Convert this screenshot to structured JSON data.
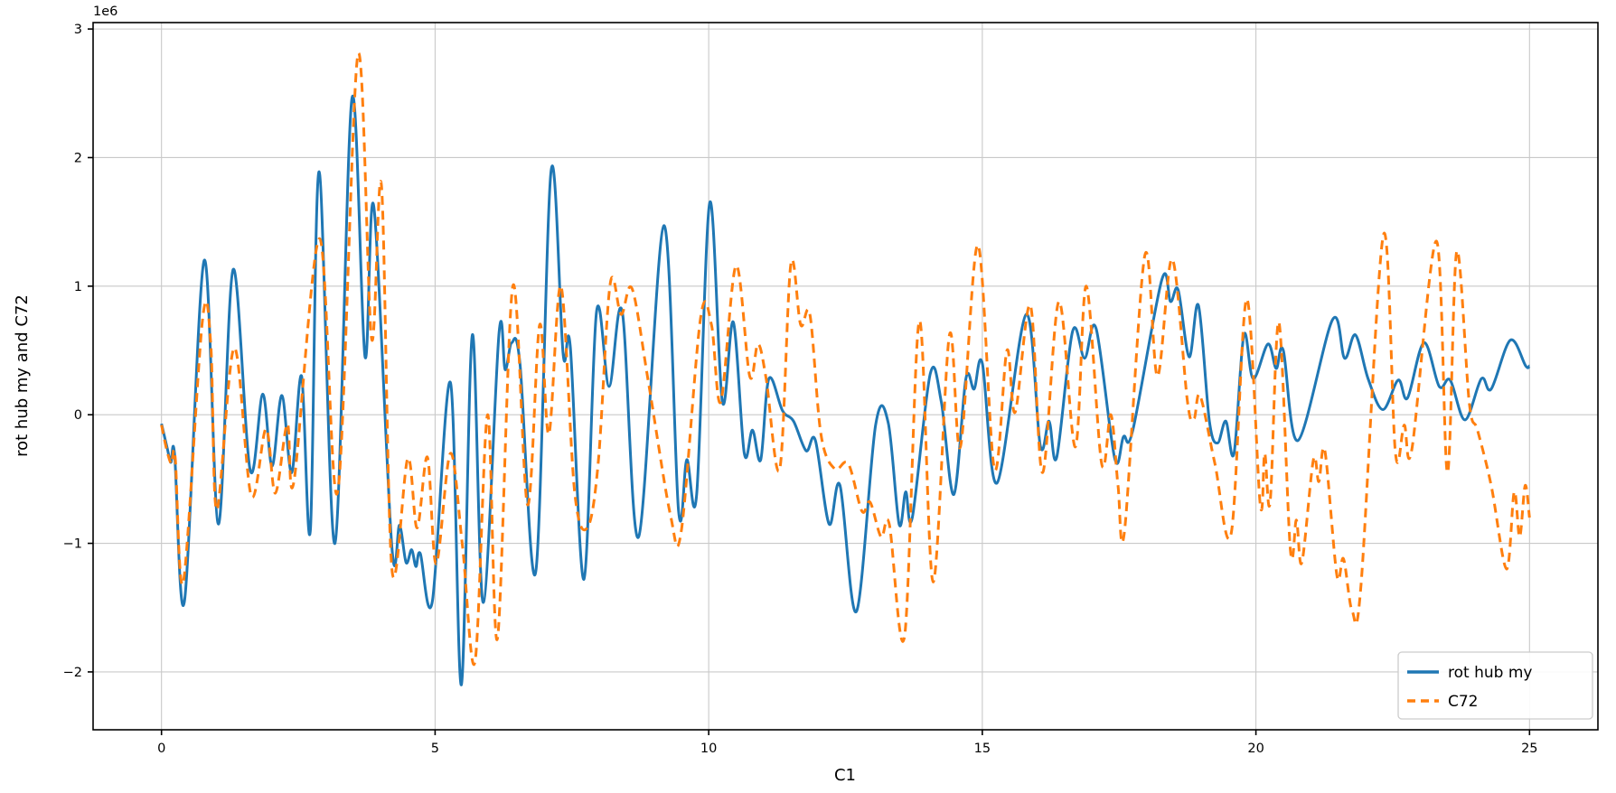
{
  "chart_data": {
    "type": "line",
    "title": "",
    "xlabel": "C1",
    "ylabel": "rot hub my and C72",
    "offset_text": "1e6",
    "xlim": [
      -1.25,
      26.25
    ],
    "ylim": [
      -2450000,
      3050000
    ],
    "xticks": [
      0,
      5,
      10,
      15,
      20,
      25
    ],
    "xtick_labels": [
      "0",
      "5",
      "10",
      "15",
      "20",
      "25"
    ],
    "yticks": [
      -2000000,
      -1000000,
      0,
      1000000,
      2000000,
      3000000
    ],
    "ytick_labels": [
      "−2",
      "−1",
      "0",
      "1",
      "2",
      "3"
    ],
    "grid": true,
    "grid_color": "#c9c9c9",
    "axis_color": "#000000",
    "legend_position": "lower right",
    "series": [
      {
        "name": "rot hub my",
        "color": "#1f77b4",
        "style": "solid",
        "points": [
          [
            0.0,
            -70000
          ],
          [
            0.1,
            -250000
          ],
          [
            0.17,
            -370000
          ],
          [
            0.24,
            -310000
          ],
          [
            0.42,
            -1450000
          ],
          [
            0.78,
            1200000
          ],
          [
            1.04,
            -850000
          ],
          [
            1.31,
            1130000
          ],
          [
            1.62,
            -430000
          ],
          [
            1.85,
            160000
          ],
          [
            2.02,
            -400000
          ],
          [
            2.2,
            150000
          ],
          [
            2.38,
            -450000
          ],
          [
            2.56,
            300000
          ],
          [
            2.72,
            -900000
          ],
          [
            2.88,
            1890000
          ],
          [
            3.17,
            -1000000
          ],
          [
            3.48,
            2460000
          ],
          [
            3.72,
            450000
          ],
          [
            3.88,
            1620000
          ],
          [
            4.21,
            -1030000
          ],
          [
            4.35,
            -860000
          ],
          [
            4.47,
            -1150000
          ],
          [
            4.57,
            -1050000
          ],
          [
            4.65,
            -1180000
          ],
          [
            4.73,
            -1080000
          ],
          [
            4.95,
            -1450000
          ],
          [
            5.28,
            250000
          ],
          [
            5.48,
            -2100000
          ],
          [
            5.68,
            620000
          ],
          [
            5.88,
            -1460000
          ],
          [
            6.17,
            640000
          ],
          [
            6.28,
            350000
          ],
          [
            6.4,
            560000
          ],
          [
            6.55,
            400000
          ],
          [
            6.84,
            -1220000
          ],
          [
            7.12,
            1900000
          ],
          [
            7.34,
            470000
          ],
          [
            7.47,
            530000
          ],
          [
            7.72,
            -1280000
          ],
          [
            7.95,
            800000
          ],
          [
            8.18,
            220000
          ],
          [
            8.42,
            800000
          ],
          [
            8.72,
            -950000
          ],
          [
            9.18,
            1470000
          ],
          [
            9.45,
            -750000
          ],
          [
            9.6,
            -350000
          ],
          [
            9.78,
            -620000
          ],
          [
            10.02,
            1650000
          ],
          [
            10.25,
            100000
          ],
          [
            10.45,
            720000
          ],
          [
            10.65,
            -300000
          ],
          [
            10.8,
            -120000
          ],
          [
            10.95,
            -350000
          ],
          [
            11.1,
            280000
          ],
          [
            11.35,
            30000
          ],
          [
            11.55,
            -50000
          ],
          [
            11.78,
            -280000
          ],
          [
            11.95,
            -200000
          ],
          [
            12.2,
            -850000
          ],
          [
            12.4,
            -550000
          ],
          [
            12.7,
            -1530000
          ],
          [
            13.05,
            -80000
          ],
          [
            13.28,
            -60000
          ],
          [
            13.48,
            -850000
          ],
          [
            13.6,
            -600000
          ],
          [
            13.72,
            -800000
          ],
          [
            14.05,
            320000
          ],
          [
            14.25,
            100000
          ],
          [
            14.48,
            -620000
          ],
          [
            14.7,
            280000
          ],
          [
            14.85,
            200000
          ],
          [
            15.0,
            400000
          ],
          [
            15.27,
            -530000
          ],
          [
            15.8,
            780000
          ],
          [
            16.06,
            -240000
          ],
          [
            16.22,
            -50000
          ],
          [
            16.36,
            -330000
          ],
          [
            16.65,
            650000
          ],
          [
            16.87,
            440000
          ],
          [
            17.08,
            670000
          ],
          [
            17.42,
            -340000
          ],
          [
            17.58,
            -170000
          ],
          [
            17.75,
            -120000
          ],
          [
            18.28,
            1050000
          ],
          [
            18.44,
            880000
          ],
          [
            18.58,
            970000
          ],
          [
            18.78,
            450000
          ],
          [
            18.95,
            850000
          ],
          [
            19.15,
            -50000
          ],
          [
            19.3,
            -220000
          ],
          [
            19.45,
            -50000
          ],
          [
            19.6,
            -300000
          ],
          [
            19.78,
            620000
          ],
          [
            19.95,
            280000
          ],
          [
            20.22,
            550000
          ],
          [
            20.37,
            360000
          ],
          [
            20.5,
            500000
          ],
          [
            20.77,
            -200000
          ],
          [
            21.4,
            740000
          ],
          [
            21.62,
            440000
          ],
          [
            21.82,
            620000
          ],
          [
            22.05,
            280000
          ],
          [
            22.32,
            40000
          ],
          [
            22.6,
            270000
          ],
          [
            22.77,
            130000
          ],
          [
            23.07,
            560000
          ],
          [
            23.35,
            220000
          ],
          [
            23.55,
            270000
          ],
          [
            23.82,
            -40000
          ],
          [
            24.12,
            280000
          ],
          [
            24.3,
            200000
          ],
          [
            24.65,
            580000
          ],
          [
            24.93,
            380000
          ],
          [
            25.0,
            380000
          ]
        ]
      },
      {
        "name": "C72",
        "color": "#ff7f0e",
        "style": "dashed",
        "points": [
          [
            0.0,
            -80000
          ],
          [
            0.1,
            -280000
          ],
          [
            0.18,
            -380000
          ],
          [
            0.25,
            -330000
          ],
          [
            0.4,
            -1300000
          ],
          [
            0.75,
            740000
          ],
          [
            0.9,
            550000
          ],
          [
            1.01,
            -740000
          ],
          [
            1.33,
            520000
          ],
          [
            1.64,
            -630000
          ],
          [
            1.91,
            -110000
          ],
          [
            2.08,
            -610000
          ],
          [
            2.3,
            -70000
          ],
          [
            2.42,
            -520000
          ],
          [
            2.89,
            1370000
          ],
          [
            3.22,
            -600000
          ],
          [
            3.59,
            2800000
          ],
          [
            3.84,
            590000
          ],
          [
            4.02,
            1780000
          ],
          [
            4.21,
            -1200000
          ],
          [
            4.5,
            -340000
          ],
          [
            4.67,
            -880000
          ],
          [
            4.86,
            -330000
          ],
          [
            5.02,
            -1160000
          ],
          [
            5.28,
            -300000
          ],
          [
            5.5,
            -1020000
          ],
          [
            5.73,
            -1920000
          ],
          [
            5.96,
            0
          ],
          [
            6.14,
            -1740000
          ],
          [
            6.42,
            1000000
          ],
          [
            6.69,
            -700000
          ],
          [
            6.91,
            700000
          ],
          [
            7.08,
            -150000
          ],
          [
            7.3,
            1000000
          ],
          [
            7.55,
            -600000
          ],
          [
            7.78,
            -880000
          ],
          [
            7.98,
            -380000
          ],
          [
            8.2,
            1020000
          ],
          [
            8.4,
            780000
          ],
          [
            8.6,
            980000
          ],
          [
            8.9,
            250000
          ],
          [
            9.3,
            -780000
          ],
          [
            9.5,
            -900000
          ],
          [
            9.85,
            750000
          ],
          [
            10.05,
            700000
          ],
          [
            10.22,
            100000
          ],
          [
            10.5,
            1160000
          ],
          [
            10.75,
            300000
          ],
          [
            10.9,
            550000
          ],
          [
            11.05,
            280000
          ],
          [
            11.3,
            -420000
          ],
          [
            11.5,
            1170000
          ],
          [
            11.68,
            700000
          ],
          [
            11.85,
            780000
          ],
          [
            12.05,
            -150000
          ],
          [
            12.3,
            -420000
          ],
          [
            12.55,
            -380000
          ],
          [
            12.8,
            -750000
          ],
          [
            12.95,
            -680000
          ],
          [
            13.15,
            -950000
          ],
          [
            13.3,
            -850000
          ],
          [
            13.58,
            -1720000
          ],
          [
            13.85,
            730000
          ],
          [
            14.1,
            -1300000
          ],
          [
            14.4,
            620000
          ],
          [
            14.6,
            -250000
          ],
          [
            14.92,
            1320000
          ],
          [
            15.22,
            -420000
          ],
          [
            15.45,
            500000
          ],
          [
            15.6,
            20000
          ],
          [
            15.88,
            850000
          ],
          [
            16.1,
            -450000
          ],
          [
            16.4,
            880000
          ],
          [
            16.7,
            -250000
          ],
          [
            16.9,
            1000000
          ],
          [
            17.18,
            -380000
          ],
          [
            17.35,
            0
          ],
          [
            17.48,
            -550000
          ],
          [
            17.6,
            -900000
          ],
          [
            17.97,
            1240000
          ],
          [
            18.2,
            300000
          ],
          [
            18.47,
            1210000
          ],
          [
            18.75,
            100000
          ],
          [
            18.87,
            -30000
          ],
          [
            18.98,
            150000
          ],
          [
            19.25,
            -380000
          ],
          [
            19.55,
            -920000
          ],
          [
            19.83,
            900000
          ],
          [
            20.08,
            -700000
          ],
          [
            20.16,
            -300000
          ],
          [
            20.26,
            -680000
          ],
          [
            20.42,
            720000
          ],
          [
            20.63,
            -1050000
          ],
          [
            20.74,
            -820000
          ],
          [
            20.84,
            -1150000
          ],
          [
            21.05,
            -350000
          ],
          [
            21.15,
            -520000
          ],
          [
            21.26,
            -280000
          ],
          [
            21.48,
            -1250000
          ],
          [
            21.6,
            -1120000
          ],
          [
            21.76,
            -1530000
          ],
          [
            21.92,
            -1330000
          ],
          [
            22.33,
            1400000
          ],
          [
            22.55,
            -300000
          ],
          [
            22.71,
            -80000
          ],
          [
            22.85,
            -270000
          ],
          [
            23.3,
            1350000
          ],
          [
            23.5,
            -450000
          ],
          [
            23.67,
            1270000
          ],
          [
            23.9,
            90000
          ],
          [
            24.05,
            -120000
          ],
          [
            24.3,
            -550000
          ],
          [
            24.58,
            -1200000
          ],
          [
            24.72,
            -600000
          ],
          [
            24.82,
            -950000
          ],
          [
            24.92,
            -550000
          ],
          [
            25.0,
            -800000
          ]
        ]
      }
    ]
  }
}
